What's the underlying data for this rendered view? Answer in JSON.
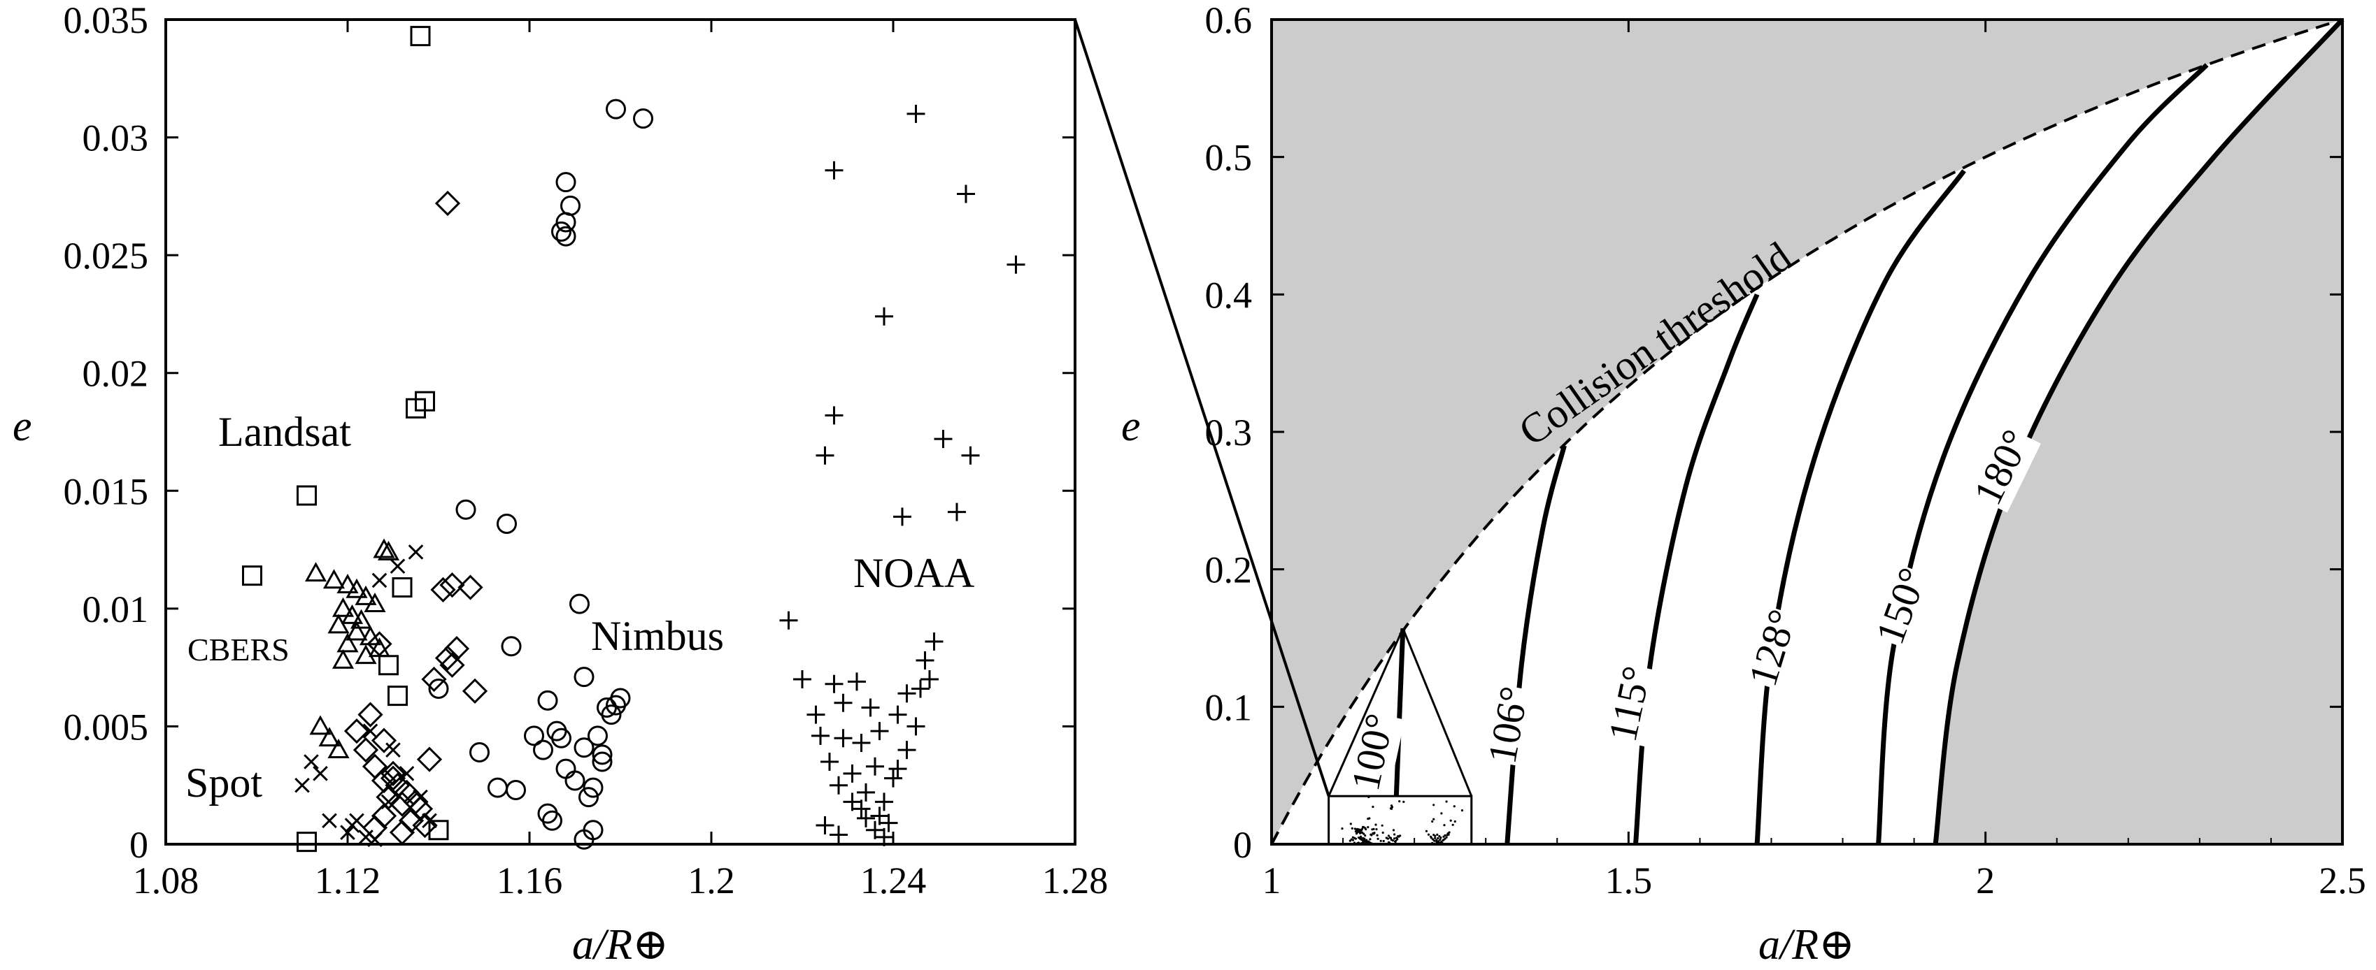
{
  "chart_data": [
    {
      "type": "scatter",
      "xlabel": "a/R⊕",
      "ylabel": "e",
      "xlim": [
        1.08,
        1.28
      ],
      "ylim": [
        0,
        0.035
      ],
      "xticks": [
        "1.08",
        "1.12",
        "1.16",
        "1.2",
        "1.24",
        "1.28"
      ],
      "yticks": [
        "0",
        "0.005",
        "0.01",
        "0.015",
        "0.02",
        "0.025",
        "0.03",
        "0.035"
      ],
      "grid": false,
      "annotations": [
        "Landsat",
        "CBERS",
        "Spot",
        "Nimbus",
        "NOAA"
      ],
      "series": [
        {
          "name": "Landsat",
          "marker": "square",
          "points": [
            [
              1.136,
              0.0343
            ],
            [
              1.137,
              0.0188
            ],
            [
              1.135,
              0.0185
            ],
            [
              1.111,
              0.0148
            ],
            [
              1.099,
              0.0114
            ],
            [
              1.132,
              0.0109
            ],
            [
              1.129,
              0.0076
            ],
            [
              1.131,
              0.0063
            ],
            [
              1.14,
              0.0006
            ],
            [
              1.111,
              0.0001
            ]
          ]
        },
        {
          "name": "CBERS",
          "marker": "triangle",
          "points": [
            [
              1.113,
              0.0115
            ],
            [
              1.117,
              0.0112
            ],
            [
              1.12,
              0.011
            ],
            [
              1.122,
              0.0108
            ],
            [
              1.124,
              0.0105
            ],
            [
              1.126,
              0.0102
            ],
            [
              1.119,
              0.01
            ],
            [
              1.121,
              0.0097
            ],
            [
              1.123,
              0.0095
            ],
            [
              1.118,
              0.0093
            ],
            [
              1.122,
              0.009
            ],
            [
              1.125,
              0.0088
            ],
            [
              1.12,
              0.0085
            ],
            [
              1.127,
              0.0083
            ],
            [
              1.124,
              0.008
            ],
            [
              1.119,
              0.0078
            ],
            [
              1.129,
              0.0124
            ],
            [
              1.128,
              0.0125
            ],
            [
              1.114,
              0.005
            ],
            [
              1.116,
              0.0045
            ],
            [
              1.118,
              0.004
            ]
          ]
        },
        {
          "name": "Spot",
          "marker": "x",
          "points": [
            [
              1.135,
              0.0124
            ],
            [
              1.131,
              0.0118
            ],
            [
              1.127,
              0.0112
            ],
            [
              1.112,
              0.0035
            ],
            [
              1.114,
              0.003
            ],
            [
              1.11,
              0.0025
            ],
            [
              1.116,
              0.001
            ],
            [
              1.12,
              0.0005
            ],
            [
              1.124,
              0.0003
            ],
            [
              1.122,
              0.001
            ],
            [
              1.126,
              0.0002
            ],
            [
              1.129,
              0.0018
            ],
            [
              1.133,
              0.003
            ],
            [
              1.136,
              0.002
            ],
            [
              1.138,
              0.001
            ],
            [
              1.13,
              0.004
            ],
            [
              1.125,
              0.0048
            ],
            [
              1.121,
              0.0008
            ]
          ]
        },
        {
          "name": "diamond",
          "marker": "diamond",
          "points": [
            [
              1.142,
              0.0272
            ],
            [
              1.147,
              0.0109
            ],
            [
              1.143,
              0.011
            ],
            [
              1.141,
              0.0108
            ],
            [
              1.127,
              0.0085
            ],
            [
              1.144,
              0.0083
            ],
            [
              1.142,
              0.0079
            ],
            [
              1.143,
              0.0076
            ],
            [
              1.139,
              0.007
            ],
            [
              1.148,
              0.0065
            ],
            [
              1.125,
              0.0055
            ],
            [
              1.122,
              0.0048
            ],
            [
              1.128,
              0.0044
            ],
            [
              1.124,
              0.004
            ],
            [
              1.138,
              0.0036
            ],
            [
              1.126,
              0.0033
            ],
            [
              1.13,
              0.003
            ],
            [
              1.128,
              0.0027
            ],
            [
              1.131,
              0.0025
            ],
            [
              1.133,
              0.0022
            ],
            [
              1.129,
              0.002
            ],
            [
              1.132,
              0.0017
            ],
            [
              1.136,
              0.0015
            ],
            [
              1.128,
              0.0012
            ],
            [
              1.134,
              0.001
            ],
            [
              1.137,
              0.0008
            ],
            [
              1.126,
              0.0007
            ],
            [
              1.132,
              0.0005
            ],
            [
              1.13,
              0.0028
            ],
            [
              1.135,
              0.0018
            ]
          ]
        },
        {
          "name": "Nimbus",
          "marker": "circle",
          "points": [
            [
              1.179,
              0.0312
            ],
            [
              1.185,
              0.0308
            ],
            [
              1.168,
              0.0281
            ],
            [
              1.169,
              0.0271
            ],
            [
              1.168,
              0.0264
            ],
            [
              1.167,
              0.026
            ],
            [
              1.168,
              0.0258
            ],
            [
              1.146,
              0.0142
            ],
            [
              1.155,
              0.0136
            ],
            [
              1.171,
              0.0102
            ],
            [
              1.156,
              0.0084
            ],
            [
              1.14,
              0.0066
            ],
            [
              1.172,
              0.0071
            ],
            [
              1.164,
              0.0061
            ],
            [
              1.177,
              0.0058
            ],
            [
              1.18,
              0.0062
            ],
            [
              1.179,
              0.0059
            ],
            [
              1.178,
              0.0055
            ],
            [
              1.166,
              0.0048
            ],
            [
              1.161,
              0.0046
            ],
            [
              1.167,
              0.0045
            ],
            [
              1.172,
              0.0041
            ],
            [
              1.163,
              0.004
            ],
            [
              1.176,
              0.0038
            ],
            [
              1.176,
              0.0035
            ],
            [
              1.168,
              0.0032
            ],
            [
              1.149,
              0.0039
            ],
            [
              1.17,
              0.0027
            ],
            [
              1.174,
              0.0024
            ],
            [
              1.173,
              0.002
            ],
            [
              1.153,
              0.0024
            ],
            [
              1.157,
              0.0023
            ],
            [
              1.164,
              0.0013
            ],
            [
              1.165,
              0.001
            ],
            [
              1.174,
              0.0006
            ],
            [
              1.172,
              0.0002
            ],
            [
              1.175,
              0.0046
            ]
          ]
        },
        {
          "name": "NOAA",
          "marker": "plus",
          "points": [
            [
              1.245,
              0.031
            ],
            [
              1.227,
              0.0286
            ],
            [
              1.256,
              0.0276
            ],
            [
              1.267,
              0.0246
            ],
            [
              1.238,
              0.0224
            ],
            [
              1.227,
              0.0182
            ],
            [
              1.251,
              0.0172
            ],
            [
              1.225,
              0.0165
            ],
            [
              1.257,
              0.0165
            ],
            [
              1.254,
              0.0141
            ],
            [
              1.242,
              0.0139
            ],
            [
              1.217,
              0.0095
            ],
            [
              1.249,
              0.0086
            ],
            [
              1.247,
              0.0078
            ],
            [
              1.248,
              0.007
            ],
            [
              1.246,
              0.0066
            ],
            [
              1.243,
              0.0064
            ],
            [
              1.227,
              0.0068
            ],
            [
              1.232,
              0.0069
            ],
            [
              1.22,
              0.007
            ],
            [
              1.229,
              0.006
            ],
            [
              1.223,
              0.0055
            ],
            [
              1.235,
              0.0058
            ],
            [
              1.241,
              0.0055
            ],
            [
              1.245,
              0.005
            ],
            [
              1.237,
              0.0048
            ],
            [
              1.224,
              0.0046
            ],
            [
              1.229,
              0.0045
            ],
            [
              1.233,
              0.0043
            ],
            [
              1.243,
              0.004
            ],
            [
              1.226,
              0.0035
            ],
            [
              1.236,
              0.0033
            ],
            [
              1.231,
              0.003
            ],
            [
              1.24,
              0.0028
            ],
            [
              1.228,
              0.0025
            ],
            [
              1.234,
              0.0022
            ],
            [
              1.238,
              0.0018
            ],
            [
              1.233,
              0.0015
            ],
            [
              1.237,
              0.0012
            ],
            [
              1.239,
              0.0009
            ],
            [
              1.225,
              0.0008
            ],
            [
              1.236,
              0.0006
            ],
            [
              1.228,
              0.0004
            ],
            [
              1.238,
              0.0003
            ],
            [
              1.234,
              0.0011
            ],
            [
              1.231,
              0.0018
            ],
            [
              1.241,
              0.0032
            ]
          ]
        }
      ]
    },
    {
      "type": "line",
      "xlabel": "a/R⊕",
      "ylabel": "e",
      "xlim": [
        1,
        2.5
      ],
      "ylim": [
        0,
        0.6
      ],
      "xticks": [
        "1",
        "1.5",
        "2",
        "2.5"
      ],
      "yticks": [
        "0",
        "0.1",
        "0.2",
        "0.3",
        "0.4",
        "0.5",
        "0.6"
      ],
      "grid": false,
      "shaded_regions": "gray regions above the collision threshold and beyond the 180° curve",
      "threshold": {
        "label": "Collision threshold",
        "style": "dashed",
        "formula": "e = 1 - 1/(a/R⊕)",
        "x": [
          1,
          1.25,
          1.5,
          1.75,
          2,
          2.25,
          2.5
        ],
        "y": [
          0,
          0.2,
          0.333,
          0.429,
          0.5,
          0.556,
          0.6
        ]
      },
      "series": [
        {
          "name": "100°",
          "x": [
            1.172,
            1.184
          ],
          "y": [
            0,
            0.157
          ]
        },
        {
          "name": "106°",
          "x": [
            1.33,
            1.35,
            1.38,
            1.41
          ],
          "y": [
            0,
            0.13,
            0.23,
            0.29
          ]
        },
        {
          "name": "115°",
          "x": [
            1.51,
            1.53,
            1.58,
            1.64,
            1.68
          ],
          "y": [
            0,
            0.13,
            0.26,
            0.35,
            0.4
          ]
        },
        {
          "name": "128°",
          "x": [
            1.68,
            1.7,
            1.76,
            1.86,
            1.97
          ],
          "y": [
            0,
            0.14,
            0.28,
            0.41,
            0.49
          ]
        },
        {
          "name": "150°",
          "x": [
            1.85,
            1.87,
            1.94,
            2.06,
            2.2,
            2.31
          ],
          "y": [
            0,
            0.14,
            0.28,
            0.41,
            0.51,
            0.567
          ]
        },
        {
          "name": "180°",
          "x": [
            1.93,
            1.96,
            2.04,
            2.17,
            2.32,
            2.5
          ],
          "y": [
            0,
            0.13,
            0.27,
            0.4,
            0.5,
            0.6
          ]
        }
      ],
      "inset": {
        "xlim": [
          1.08,
          1.28
        ],
        "ylim": [
          0,
          0.035
        ]
      }
    }
  ]
}
